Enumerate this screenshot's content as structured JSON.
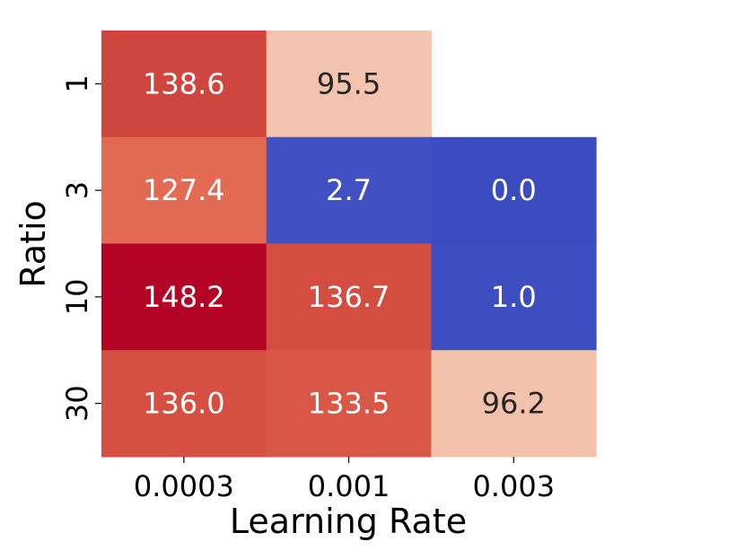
{
  "chart_data": {
    "type": "heatmap",
    "xlabel": "Learning Rate",
    "ylabel": "Ratio",
    "x_categories": [
      "0.0003",
      "0.001",
      "0.003"
    ],
    "y_categories": [
      "1",
      "3",
      "10",
      "30"
    ],
    "values": [
      [
        138.6,
        95.5,
        null
      ],
      [
        127.4,
        2.7,
        0.0
      ],
      [
        148.2,
        136.7,
        1.0
      ],
      [
        136.0,
        133.5,
        96.2
      ]
    ],
    "colormap": "coolwarm",
    "value_range": [
      0.0,
      148.2
    ],
    "colorbar": false,
    "annotations": true,
    "grid": false
  }
}
